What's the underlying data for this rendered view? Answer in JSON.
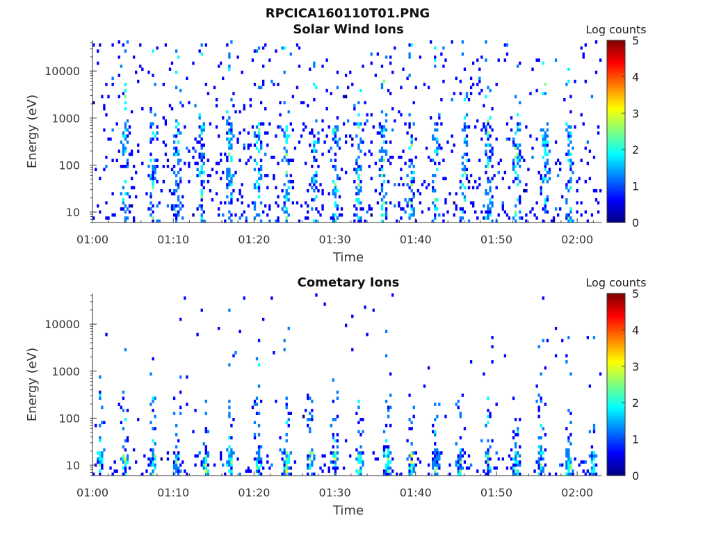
{
  "figure_title": "RPCICA160110T01.PNG",
  "colormap": [
    "#00007f",
    "#0000ff",
    "#007fff",
    "#00ffff",
    "#7fff7f",
    "#ffff00",
    "#ff7f00",
    "#ff0000",
    "#7f0000"
  ],
  "chart_data": [
    {
      "type": "heatmap",
      "title": "Solar Wind Ions",
      "xlabel": "Time",
      "ylabel": "Energy (eV)",
      "x_ticks": [
        "01:00",
        "01:10",
        "01:20",
        "01:30",
        "01:40",
        "01:50",
        "02:00"
      ],
      "xlim_minutes": [
        0,
        63
      ],
      "y_ticks": [
        "10",
        "100",
        "1000",
        "10000"
      ],
      "y_tick_values": [
        10,
        100,
        1000,
        10000
      ],
      "ylim": [
        6,
        45000
      ],
      "y_scale": "log",
      "colorbar": {
        "label": "Log counts",
        "ticks": [
          "0",
          "1",
          "2",
          "3",
          "4",
          "5"
        ],
        "range": [
          0,
          5
        ]
      },
      "enhancements_minutes": [
        4,
        7.5,
        10.5,
        13.5,
        17,
        20.5,
        24,
        27.5,
        30,
        33,
        36,
        39.5,
        42.5,
        46,
        49,
        52.5,
        56,
        59
      ],
      "max_log_counts": 2.8
    },
    {
      "type": "heatmap",
      "title": "Cometary Ions",
      "xlabel": "Time",
      "ylabel": "Energy (eV)",
      "x_ticks": [
        "01:00",
        "01:10",
        "01:20",
        "01:30",
        "01:40",
        "01:50",
        "02:00"
      ],
      "xlim_minutes": [
        0,
        63
      ],
      "y_ticks": [
        "10",
        "100",
        "1000",
        "10000"
      ],
      "y_tick_values": [
        10,
        100,
        1000,
        10000
      ],
      "ylim": [
        6,
        45000
      ],
      "y_scale": "log",
      "colorbar": {
        "label": "Log counts",
        "ticks": [
          "0",
          "1",
          "2",
          "3",
          "4",
          "5"
        ],
        "range": [
          0,
          5
        ]
      },
      "bursts_minutes": [
        1,
        4,
        7.5,
        10.5,
        14,
        17,
        20.5,
        24,
        27,
        30,
        33,
        36.5,
        39.5,
        42.5,
        45.5,
        49,
        52.5,
        55.5,
        59,
        62
      ],
      "max_log_counts": 3.0
    }
  ]
}
